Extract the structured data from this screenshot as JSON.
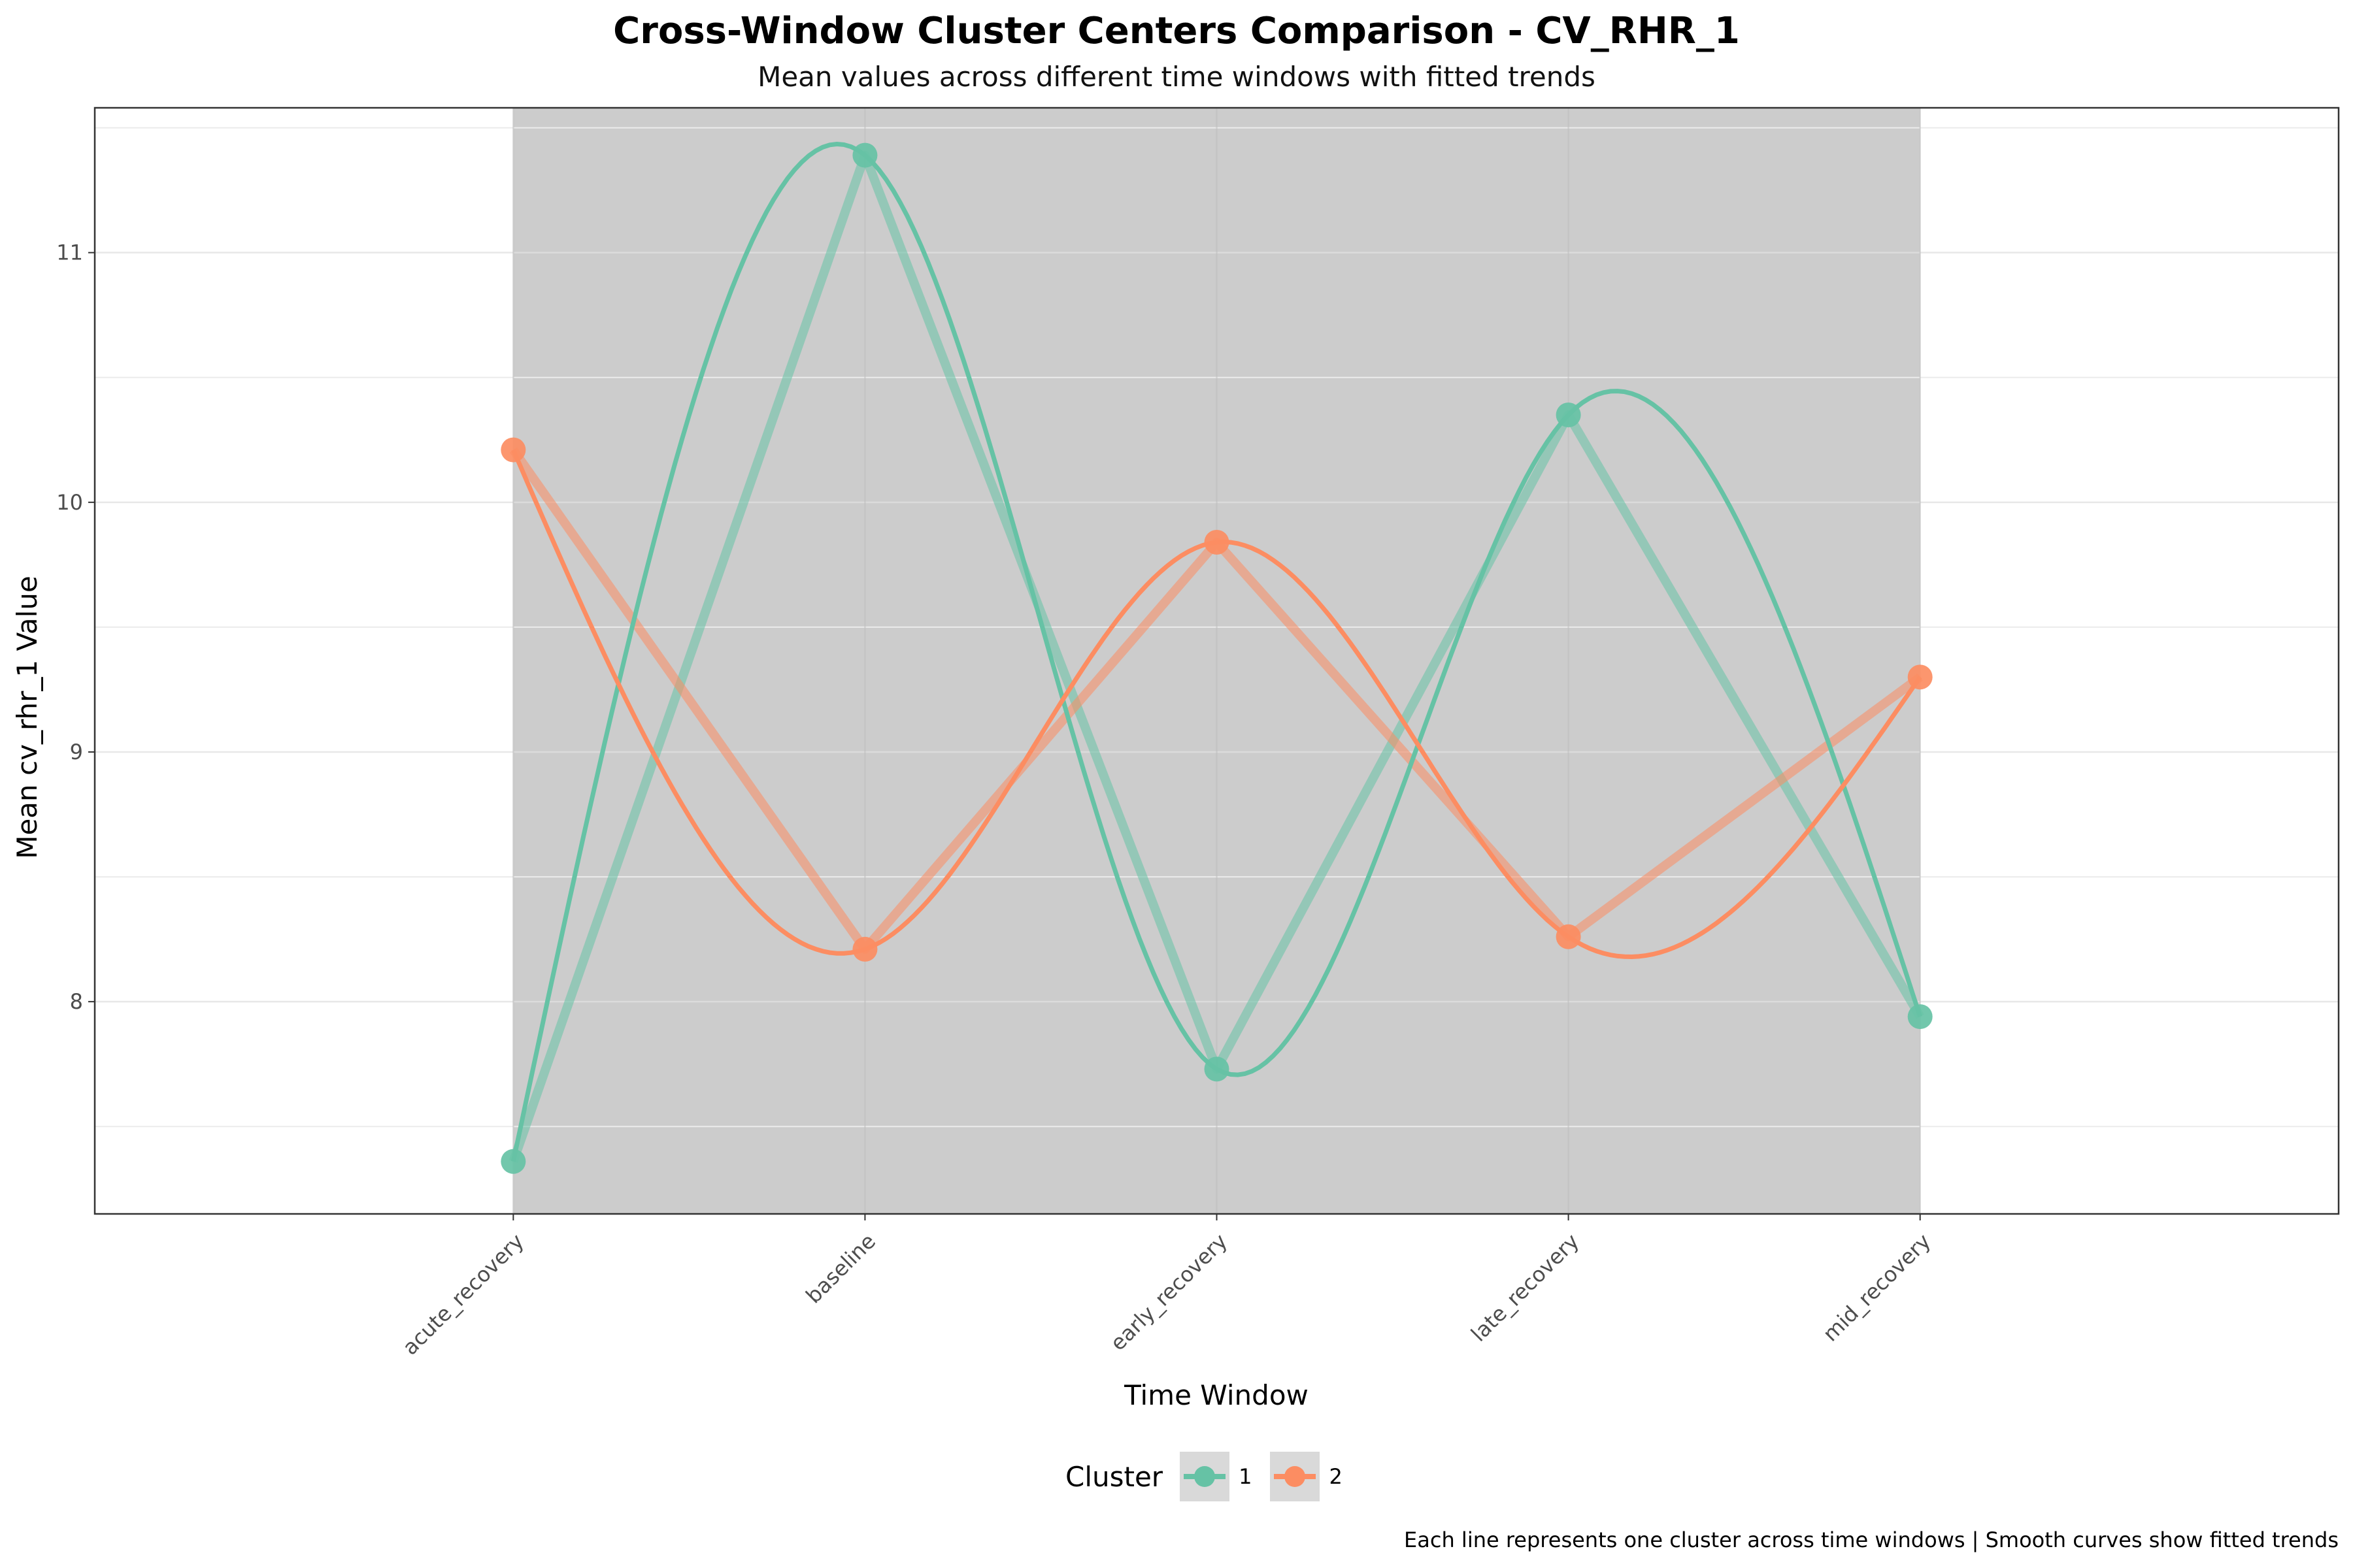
{
  "chart_data": {
    "type": "line",
    "title": "Cross-Window Cluster Centers Comparison - CV_RHR_1",
    "subtitle": "Mean values across different time windows with fitted trends",
    "xlabel": "Time Window",
    "ylabel": "Mean cv_rhr_1 Value",
    "caption": "Each line represents one cluster across time windows | Smooth curves show fitted trends",
    "categories": [
      "acute_recovery",
      "baseline",
      "early_recovery",
      "late_recovery",
      "mid_recovery"
    ],
    "ylim": [
      7.15,
      11.58
    ],
    "yticks": [
      8,
      9,
      10,
      11
    ],
    "grid": true,
    "legend": {
      "title": "Cluster",
      "position": "bottom"
    },
    "series": [
      {
        "name": "1",
        "color": "#66c2a5",
        "values": [
          7.36,
          11.39,
          7.73,
          10.35,
          7.94
        ]
      },
      {
        "name": "2",
        "color": "#fc8d62",
        "values": [
          10.21,
          8.21,
          9.84,
          8.26,
          9.3
        ]
      }
    ],
    "smooth": true,
    "shaded_band": {
      "from": "acute_recovery",
      "to": "mid_recovery",
      "color": "#cccccc"
    }
  }
}
